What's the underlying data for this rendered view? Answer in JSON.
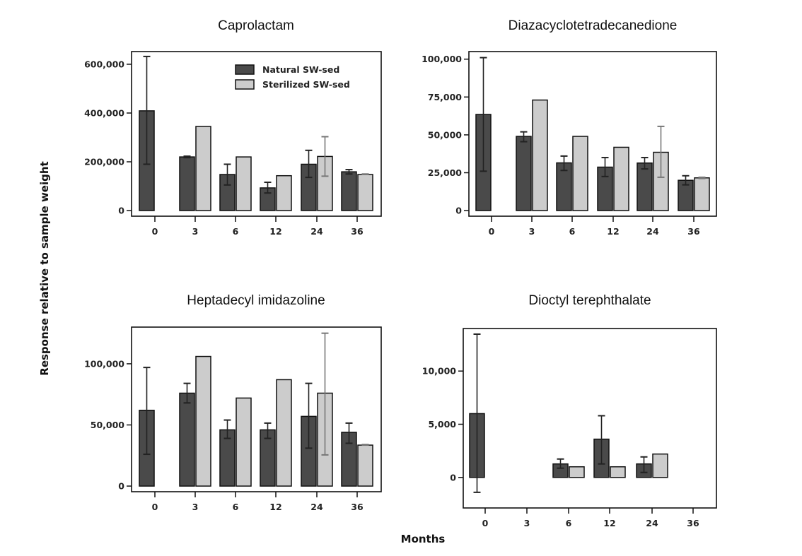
{
  "figure": {
    "ylabel": "Response relative to sample weight",
    "xlabel": "Months",
    "colors": {
      "natural": "#4a4a4a",
      "sterilized": "#cccccc",
      "axis": "#111111",
      "errorbar_natural": "#222222",
      "errorbar_sterilized": "#777777"
    }
  },
  "chart_data": [
    {
      "type": "bar",
      "title": "Caprolactam",
      "xlabel": "Months",
      "ylabel": "Response relative to sample weight",
      "categories": [
        "0",
        "3",
        "6",
        "12",
        "24",
        "36"
      ],
      "ylim": [
        -23000,
        652000
      ],
      "yticks": [
        0,
        200000,
        400000,
        600000
      ],
      "ytick_labels": [
        "0",
        "200,000",
        "400,000",
        "600,000"
      ],
      "legend": {
        "placement": "top-right",
        "entries": [
          "Natural SW-sed",
          "Sterilized SW-sed"
        ]
      },
      "series": [
        {
          "name": "Natural SW-sed",
          "values": [
            409000,
            220000,
            148000,
            93000,
            190000,
            159000
          ],
          "err_low": [
            190000,
            217000,
            105000,
            72000,
            136000,
            150000
          ],
          "err_high": [
            632000,
            223000,
            190000,
            116000,
            247000,
            168000
          ]
        },
        {
          "name": "Sterilized SW-sed",
          "values": [
            null,
            345000,
            220000,
            143000,
            222000,
            148000
          ],
          "err_low": [
            null,
            null,
            null,
            null,
            141000,
            148000
          ],
          "err_high": [
            null,
            null,
            null,
            null,
            303000,
            150000
          ]
        }
      ]
    },
    {
      "type": "bar",
      "title": "Diazacyclotetradecanedione",
      "xlabel": "Months",
      "ylabel": "Response relative to sample weight",
      "categories": [
        "0",
        "3",
        "6",
        "12",
        "24",
        "36"
      ],
      "ylim": [
        -3700,
        105000
      ],
      "yticks": [
        0,
        25000,
        50000,
        75000,
        100000
      ],
      "ytick_labels": [
        "0",
        "25,000",
        "50,000",
        "75,000",
        "100,000"
      ],
      "series": [
        {
          "name": "Natural SW-sed",
          "values": [
            63500,
            49000,
            31500,
            28700,
            31400,
            20000
          ],
          "err_low": [
            26000,
            45500,
            26500,
            22500,
            27500,
            17000
          ],
          "err_high": [
            101000,
            52000,
            36000,
            35000,
            35000,
            23000
          ]
        },
        {
          "name": "Sterilized SW-sed",
          "values": [
            null,
            73000,
            49000,
            41800,
            38500,
            21600
          ],
          "err_low": [
            null,
            null,
            null,
            null,
            22000,
            21200
          ],
          "err_high": [
            null,
            null,
            null,
            null,
            55600,
            22000
          ]
        }
      ]
    },
    {
      "type": "bar",
      "title": "Heptadecyl imidazoline",
      "xlabel": "Months",
      "ylabel": "Response relative to sample weight",
      "categories": [
        "0",
        "3",
        "6",
        "12",
        "24",
        "36"
      ],
      "ylim": [
        -4600,
        130000
      ],
      "yticks": [
        0,
        50000,
        100000
      ],
      "ytick_labels": [
        "0",
        "50,000",
        "100,000"
      ],
      "series": [
        {
          "name": "Natural SW-sed",
          "values": [
            62000,
            76000,
            46000,
            46000,
            57000,
            44000
          ],
          "err_low": [
            26000,
            68000,
            39000,
            39000,
            31000,
            35000
          ],
          "err_high": [
            97000,
            84000,
            54000,
            51500,
            84000,
            51500
          ]
        },
        {
          "name": "Sterilized SW-sed",
          "values": [
            null,
            106000,
            72000,
            87000,
            76000,
            33500
          ],
          "err_low": [
            null,
            null,
            null,
            null,
            25500,
            33500
          ],
          "err_high": [
            null,
            null,
            null,
            null,
            125000,
            34000
          ]
        }
      ]
    },
    {
      "type": "bar",
      "title": "Dioctyl terephthalate",
      "xlabel": "Months",
      "ylabel": "Response relative to sample weight",
      "categories": [
        "0",
        "3",
        "6",
        "12",
        "24",
        "36"
      ],
      "ylim": [
        -2870,
        14000
      ],
      "yticks": [
        0,
        5000,
        10000
      ],
      "ytick_labels": [
        "0",
        "5,000",
        "10,000"
      ],
      "series": [
        {
          "name": "Natural SW-sed",
          "values": [
            6000,
            null,
            1270,
            3600,
            1270,
            null
          ],
          "err_low": [
            -1400,
            null,
            870,
            1270,
            470,
            null
          ],
          "err_high": [
            13470,
            null,
            1730,
            5800,
            1930,
            null
          ]
        },
        {
          "name": "Sterilized SW-sed",
          "values": [
            null,
            null,
            1000,
            1000,
            2200,
            null
          ],
          "err_low": [
            null,
            null,
            null,
            null,
            null,
            null
          ],
          "err_high": [
            null,
            null,
            null,
            null,
            null,
            null
          ]
        }
      ]
    }
  ]
}
